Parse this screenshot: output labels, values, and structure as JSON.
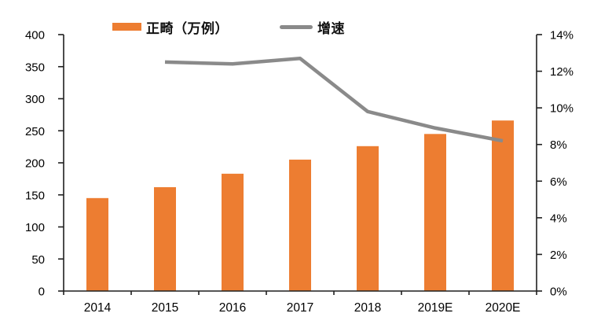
{
  "chart_data": {
    "type": "bar",
    "subtype": "bar-line-combo",
    "title": "",
    "categories": [
      "2014",
      "2015",
      "2016",
      "2017",
      "2018",
      "2019E",
      "2020E"
    ],
    "series": [
      {
        "name": "正畸（万例）",
        "type": "bar",
        "yaxis": "left",
        "color": "#ED7D31",
        "values": [
          145,
          162,
          183,
          205,
          226,
          245,
          266
        ]
      },
      {
        "name": "增速",
        "type": "line",
        "yaxis": "right",
        "color": "#8A8A8A",
        "values": [
          null,
          12.5,
          12.4,
          12.7,
          9.8,
          8.9,
          8.2
        ]
      }
    ],
    "left_axis": {
      "min": 0,
      "max": 400,
      "step": 50,
      "suffix": ""
    },
    "right_axis": {
      "min": 0,
      "max": 14,
      "step": 2,
      "suffix": "%"
    },
    "grid": false,
    "legend_position": "top",
    "axis_color": "#1f1f1f"
  }
}
